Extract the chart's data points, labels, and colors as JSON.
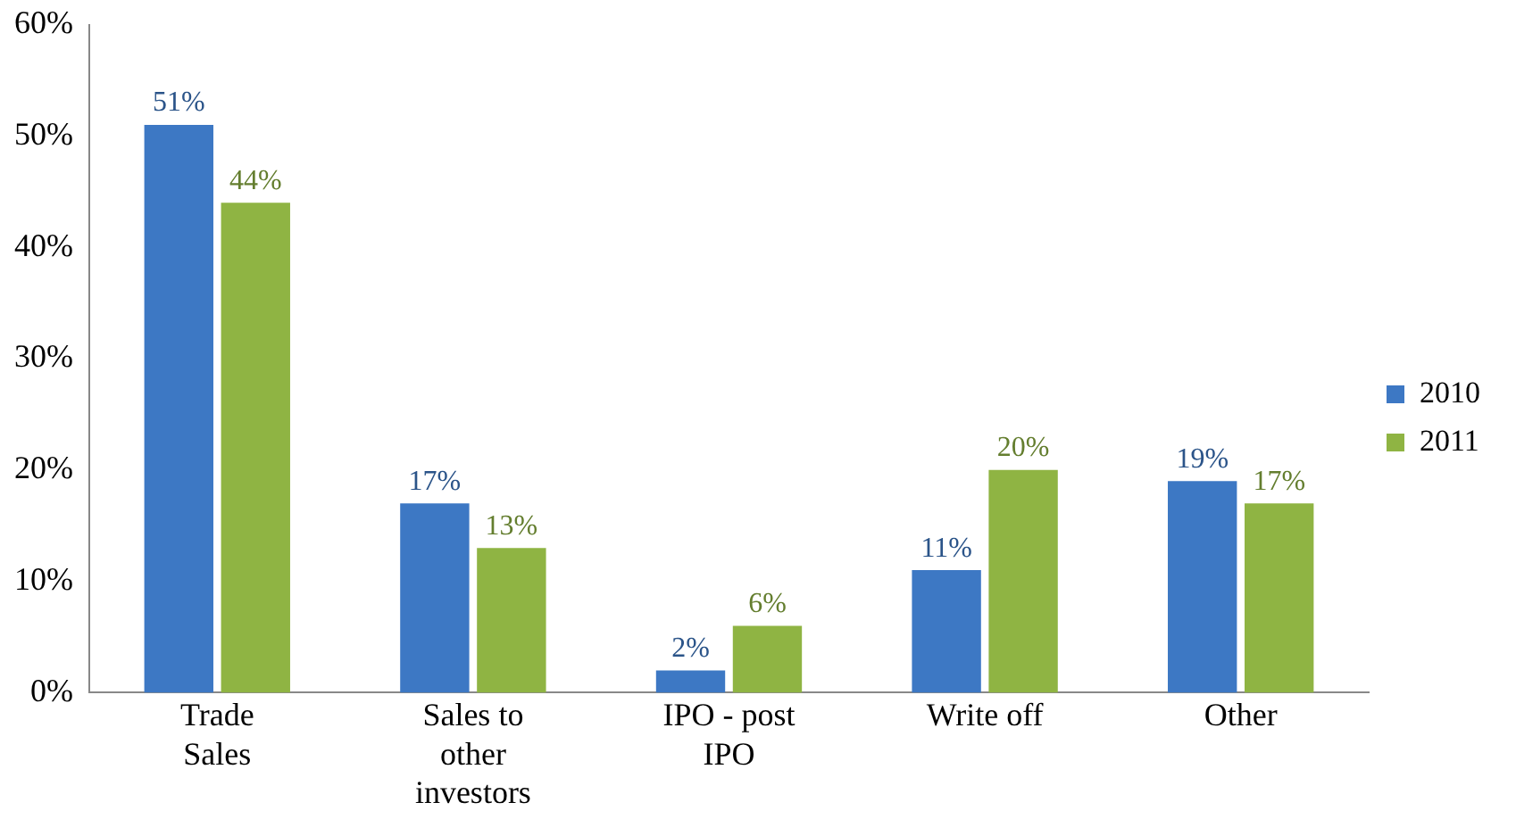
{
  "chart_data": {
    "type": "bar",
    "categories": [
      "Trade Sales",
      "Sales to other investors",
      "IPO - post IPO",
      "Write off",
      "Other"
    ],
    "series": [
      {
        "name": "2010",
        "color": "#3d78c4",
        "values": [
          51,
          17,
          2,
          11,
          19
        ],
        "value_labels": [
          "51%",
          "17%",
          "2%",
          "11%",
          "19%"
        ]
      },
      {
        "name": "2011",
        "color": "#8fb443",
        "values": [
          44,
          13,
          6,
          20,
          17
        ],
        "value_labels": [
          "44%",
          "13%",
          "6%",
          "20%",
          "17%"
        ]
      }
    ],
    "ylim": [
      0,
      60
    ],
    "yticks": [
      {
        "value": 0,
        "label": "0%"
      },
      {
        "value": 10,
        "label": "10%"
      },
      {
        "value": 20,
        "label": "20%"
      },
      {
        "value": 30,
        "label": "30%"
      },
      {
        "value": 40,
        "label": "40%"
      },
      {
        "value": 50,
        "label": "50%"
      },
      {
        "value": 60,
        "label": "60%"
      }
    ],
    "grid": false,
    "legend": "right"
  }
}
